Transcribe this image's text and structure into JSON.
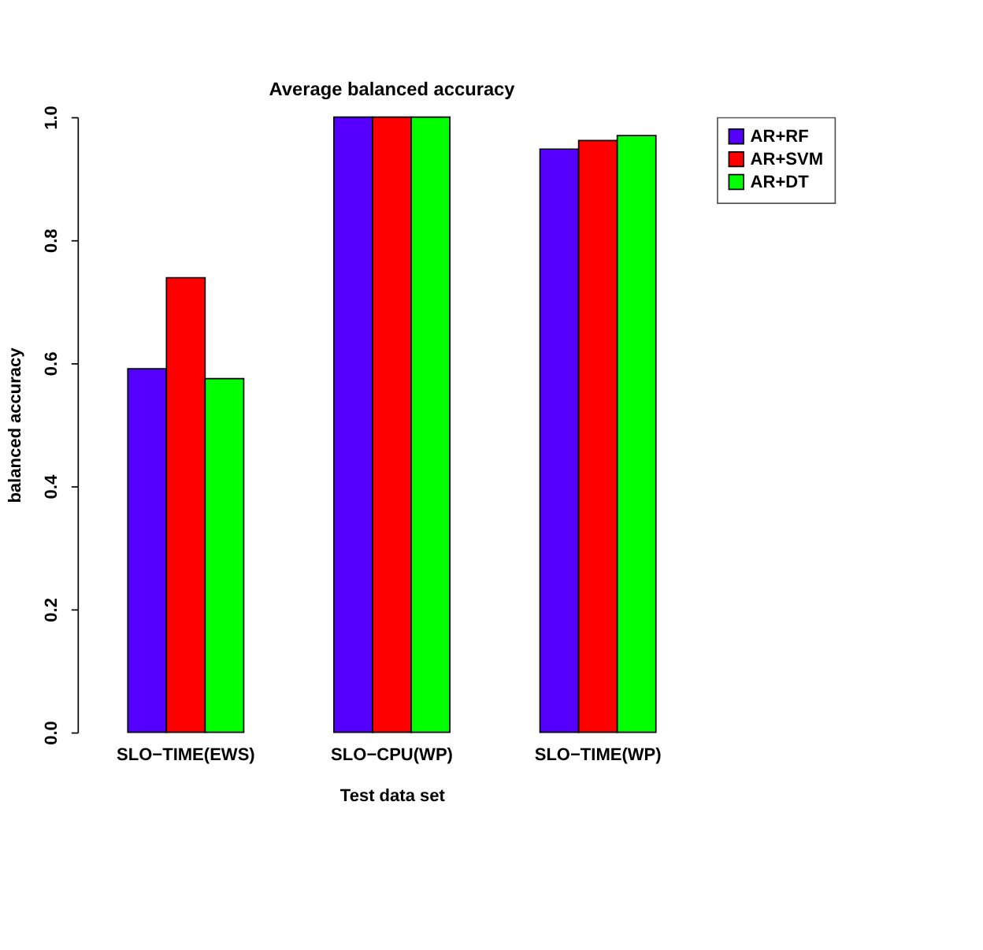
{
  "chart_data": {
    "type": "bar",
    "title": "Average balanced accuracy",
    "xlabel": "Test data set",
    "ylabel": "balanced accuracy",
    "categories": [
      "SLO−TIME(EWS)",
      "SLO−CPU(WP)",
      "SLO−TIME(WP)"
    ],
    "series": [
      {
        "name": "AR+RF",
        "color": "#5500ff",
        "values": [
          0.591,
          1.0,
          0.948
        ]
      },
      {
        "name": "AR+SVM",
        "color": "#ff0000",
        "values": [
          0.739,
          1.0,
          0.962
        ]
      },
      {
        "name": "AR+DT",
        "color": "#00ff00",
        "values": [
          0.575,
          1.0,
          0.97
        ]
      }
    ],
    "ylim": [
      0,
      1
    ],
    "yticks": [
      {
        "value": 0,
        "label": "0.0"
      },
      0.2,
      0.4,
      0.6,
      0.8,
      {
        "value": 1,
        "label": "1.0"
      }
    ],
    "grid": false,
    "legend": "top right"
  }
}
